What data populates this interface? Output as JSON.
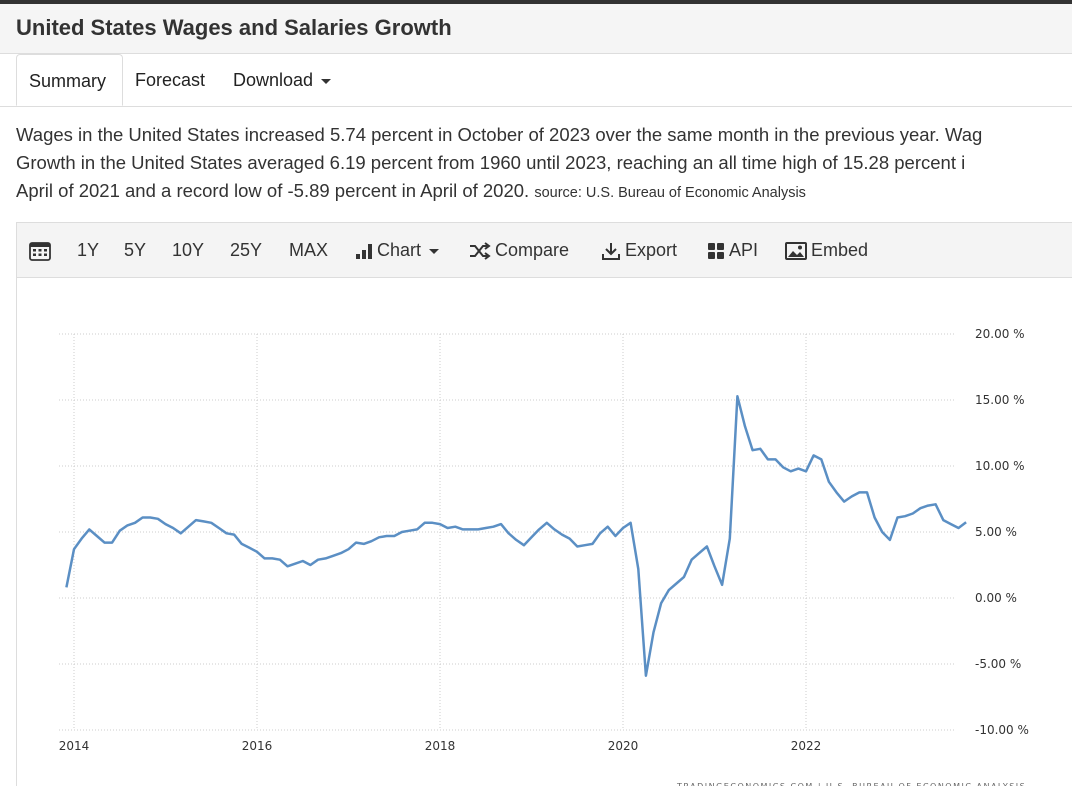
{
  "header": {
    "title": "United States Wages and Salaries Growth"
  },
  "tabs": [
    {
      "label": "Summary"
    },
    {
      "label": "Forecast"
    },
    {
      "label": "Download"
    }
  ],
  "description": {
    "line1": "Wages in the United States increased 5.74 percent in October of 2023 over the same month in the previous year. Wag",
    "line2": "Growth in the United States averaged 6.19 percent from 1960 until 2023, reaching an all time high of 15.28 percent i",
    "line3": "April of 2021 and a record low of -5.89 percent in April of 2020.",
    "source": "source: U.S. Bureau of Economic Analysis"
  },
  "toolbar": {
    "calendar_icon": "calendar-icon",
    "ranges": [
      "1Y",
      "5Y",
      "10Y",
      "25Y",
      "MAX"
    ],
    "chart_label": "Chart",
    "compare_label": "Compare",
    "export_label": "Export",
    "api_label": "API",
    "embed_label": "Embed"
  },
  "colors": {
    "line": "#5b8fc4",
    "grid": "#cccccc",
    "header_bg": "#f5f5f5",
    "toolbar_bg": "#f4f4f4"
  },
  "credit": "TRADINGECONOMICS.COM | U.S. BUREAU OF ECONOMIC ANALYSIS",
  "chart_data": {
    "type": "line",
    "title": "",
    "xlabel": "",
    "ylabel": "",
    "ylim": [
      -10,
      20
    ],
    "xlim": [
      "2013-12",
      "2023-10"
    ],
    "grid": true,
    "y_ticks": [
      20,
      15,
      10,
      5,
      0,
      -5,
      -10
    ],
    "y_tick_labels": [
      "20.00 %",
      "15.00 %",
      "10.00 %",
      "5.00 %",
      "0.00 %",
      "-5.00 %",
      "-10.00 %"
    ],
    "x_ticks": [
      "2014",
      "2016",
      "2018",
      "2020",
      "2022"
    ],
    "series": [
      {
        "values": [
          [
            "2013-12",
            0.8
          ],
          [
            "2014-01",
            3.7
          ],
          [
            "2014-02",
            4.5
          ],
          [
            "2014-03",
            5.2
          ],
          [
            "2014-04",
            4.7
          ],
          [
            "2014-05",
            4.2
          ],
          [
            "2014-06",
            4.2
          ],
          [
            "2014-07",
            5.1
          ],
          [
            "2014-08",
            5.5
          ],
          [
            "2014-09",
            5.7
          ],
          [
            "2014-10",
            6.1
          ],
          [
            "2014-11",
            6.1
          ],
          [
            "2014-12",
            6.0
          ],
          [
            "2015-01",
            5.6
          ],
          [
            "2015-02",
            5.3
          ],
          [
            "2015-03",
            4.9
          ],
          [
            "2015-04",
            5.4
          ],
          [
            "2015-05",
            5.9
          ],
          [
            "2015-06",
            5.8
          ],
          [
            "2015-07",
            5.7
          ],
          [
            "2015-08",
            5.3
          ],
          [
            "2015-09",
            4.9
          ],
          [
            "2015-10",
            4.8
          ],
          [
            "2015-11",
            4.1
          ],
          [
            "2015-12",
            3.8
          ],
          [
            "2016-01",
            3.5
          ],
          [
            "2016-02",
            3.0
          ],
          [
            "2016-03",
            3.0
          ],
          [
            "2016-04",
            2.9
          ],
          [
            "2016-05",
            2.4
          ],
          [
            "2016-06",
            2.6
          ],
          [
            "2016-07",
            2.8
          ],
          [
            "2016-08",
            2.5
          ],
          [
            "2016-09",
            2.9
          ],
          [
            "2016-10",
            3.0
          ],
          [
            "2016-11",
            3.2
          ],
          [
            "2016-12",
            3.4
          ],
          [
            "2017-01",
            3.7
          ],
          [
            "2017-02",
            4.2
          ],
          [
            "2017-03",
            4.1
          ],
          [
            "2017-04",
            4.3
          ],
          [
            "2017-05",
            4.6
          ],
          [
            "2017-06",
            4.7
          ],
          [
            "2017-07",
            4.7
          ],
          [
            "2017-08",
            5.0
          ],
          [
            "2017-09",
            5.1
          ],
          [
            "2017-10",
            5.2
          ],
          [
            "2017-11",
            5.7
          ],
          [
            "2017-12",
            5.7
          ],
          [
            "2018-01",
            5.6
          ],
          [
            "2018-02",
            5.3
          ],
          [
            "2018-03",
            5.4
          ],
          [
            "2018-04",
            5.2
          ],
          [
            "2018-05",
            5.2
          ],
          [
            "2018-06",
            5.2
          ],
          [
            "2018-07",
            5.3
          ],
          [
            "2018-08",
            5.4
          ],
          [
            "2018-09",
            5.6
          ],
          [
            "2018-10",
            4.9
          ],
          [
            "2018-11",
            4.4
          ],
          [
            "2018-12",
            4.0
          ],
          [
            "2019-01",
            4.6
          ],
          [
            "2019-02",
            5.2
          ],
          [
            "2019-03",
            5.7
          ],
          [
            "2019-04",
            5.2
          ],
          [
            "2019-05",
            4.8
          ],
          [
            "2019-06",
            4.5
          ],
          [
            "2019-07",
            3.9
          ],
          [
            "2019-08",
            4.0
          ],
          [
            "2019-09",
            4.1
          ],
          [
            "2019-10",
            4.9
          ],
          [
            "2019-11",
            5.4
          ],
          [
            "2019-12",
            4.7
          ],
          [
            "2020-01",
            5.3
          ],
          [
            "2020-02",
            5.7
          ],
          [
            "2020-03",
            2.2
          ],
          [
            "2020-04",
            -5.89
          ],
          [
            "2020-05",
            -2.6
          ],
          [
            "2020-06",
            -0.4
          ],
          [
            "2020-07",
            0.6
          ],
          [
            "2020-08",
            1.1
          ],
          [
            "2020-09",
            1.6
          ],
          [
            "2020-10",
            2.9
          ],
          [
            "2020-11",
            3.4
          ],
          [
            "2020-12",
            3.9
          ],
          [
            "2021-01",
            2.4
          ],
          [
            "2021-02",
            1.0
          ],
          [
            "2021-03",
            4.5
          ],
          [
            "2021-04",
            15.28
          ],
          [
            "2021-05",
            13.0
          ],
          [
            "2021-06",
            11.2
          ],
          [
            "2021-07",
            11.3
          ],
          [
            "2021-08",
            10.5
          ],
          [
            "2021-09",
            10.5
          ],
          [
            "2021-10",
            9.9
          ],
          [
            "2021-11",
            9.6
          ],
          [
            "2021-12",
            9.8
          ],
          [
            "2022-01",
            9.6
          ],
          [
            "2022-02",
            10.8
          ],
          [
            "2022-03",
            10.5
          ],
          [
            "2022-04",
            8.8
          ],
          [
            "2022-05",
            8.0
          ],
          [
            "2022-06",
            7.3
          ],
          [
            "2022-07",
            7.7
          ],
          [
            "2022-08",
            8.0
          ],
          [
            "2022-09",
            8.0
          ],
          [
            "2022-10",
            6.1
          ],
          [
            "2022-11",
            5.0
          ],
          [
            "2022-12",
            4.4
          ],
          [
            "2023-01",
            6.1
          ],
          [
            "2023-02",
            6.2
          ],
          [
            "2023-03",
            6.4
          ],
          [
            "2023-04",
            6.8
          ],
          [
            "2023-05",
            7.0
          ],
          [
            "2023-06",
            7.1
          ],
          [
            "2023-07",
            5.9
          ],
          [
            "2023-08",
            5.6
          ],
          [
            "2023-09",
            5.3
          ],
          [
            "2023-10",
            5.74
          ]
        ]
      }
    ]
  }
}
